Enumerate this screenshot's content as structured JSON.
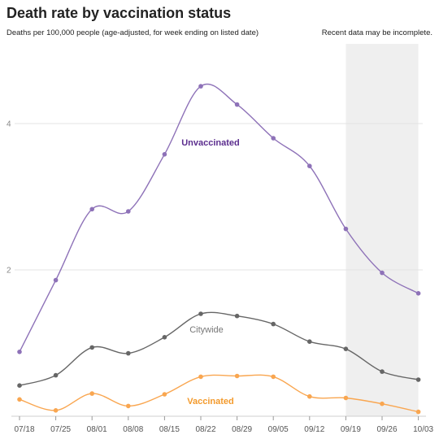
{
  "header": {
    "title": "Death rate by vaccination status",
    "subtitle": "Deaths per 100,000 people (age-adjusted, for week ending on listed date)",
    "note": "Recent data may be incomplete."
  },
  "chart_data": {
    "type": "line",
    "categories": [
      "07/18",
      "07/25",
      "08/01",
      "08/08",
      "08/15",
      "08/22",
      "08/29",
      "09/05",
      "09/12",
      "09/19",
      "09/26",
      "10/03"
    ],
    "ylim": [
      0,
      5
    ],
    "yticks": [
      "2",
      "4"
    ],
    "ytick_values": [
      2,
      4
    ],
    "grid": true,
    "shaded_region": {
      "from": "09/19",
      "to": "10/03"
    },
    "series": [
      {
        "name": "Unvaccinated",
        "color": "#8e72b8",
        "label_color": "#5b2d8e",
        "values": [
          0.88,
          1.86,
          2.83,
          2.8,
          3.58,
          4.51,
          4.26,
          3.8,
          3.42,
          2.56,
          1.96,
          1.68
        ]
      },
      {
        "name": "Citywide",
        "color": "#666666",
        "label_color": "#777777",
        "values": [
          0.42,
          0.56,
          0.94,
          0.86,
          1.08,
          1.4,
          1.37,
          1.26,
          1.02,
          0.92,
          0.61,
          0.5
        ]
      },
      {
        "name": "Vaccinated",
        "color": "#f9a650",
        "label_color": "#f39a2c",
        "values": [
          0.23,
          0.08,
          0.31,
          0.14,
          0.3,
          0.54,
          0.55,
          0.54,
          0.27,
          0.25,
          0.17,
          0.06
        ]
      }
    ]
  }
}
